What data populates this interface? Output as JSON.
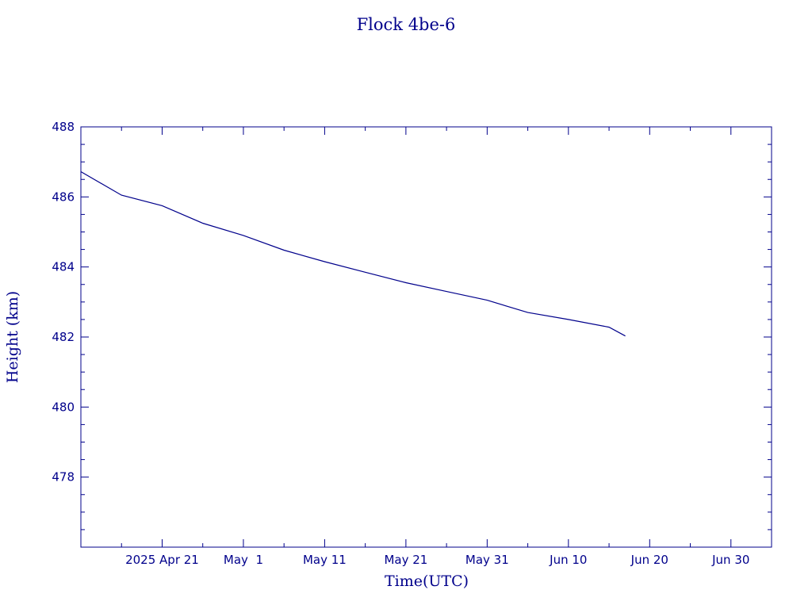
{
  "chart_data": {
    "type": "line",
    "title": "Flock 4be-6",
    "xlabel": "Time(UTC)",
    "ylabel": "Height (km)",
    "ylim": [
      476,
      488
    ],
    "xlim": [
      "2025-04-11",
      "2025-07-05"
    ],
    "y_major_ticks": [
      478,
      480,
      482,
      484,
      486,
      488
    ],
    "y_tick_labels": [
      "478",
      "480",
      "482",
      "484",
      "486",
      "488"
    ],
    "y_minor_step": 0.5,
    "x_tick_dates": [
      "2025-04-21",
      "2025-05-01",
      "2025-05-11",
      "2025-05-21",
      "2025-05-31",
      "2025-06-10",
      "2025-06-20",
      "2025-06-30"
    ],
    "x_tick_labels": [
      "2025 Apr 21",
      "May  1",
      "May 11",
      "May 21",
      "May 31",
      "Jun 10",
      "Jun 20",
      "Jun 30"
    ],
    "x_minor_step_days": 5,
    "grid": false,
    "colors": {
      "axis": "#00008b",
      "line": "#00008b"
    },
    "series": [
      {
        "x": [
          "2025-04-11",
          "2025-04-16",
          "2025-04-21",
          "2025-04-26",
          "2025-05-01",
          "2025-05-06",
          "2025-05-11",
          "2025-05-16",
          "2025-05-21",
          "2025-05-26",
          "2025-05-31",
          "2025-06-05",
          "2025-06-10",
          "2025-06-15",
          "2025-06-17"
        ],
        "y": [
          486.72,
          486.05,
          485.75,
          485.25,
          484.9,
          484.48,
          484.15,
          483.85,
          483.55,
          483.3,
          483.05,
          482.7,
          482.5,
          482.28,
          482.03
        ]
      }
    ]
  }
}
